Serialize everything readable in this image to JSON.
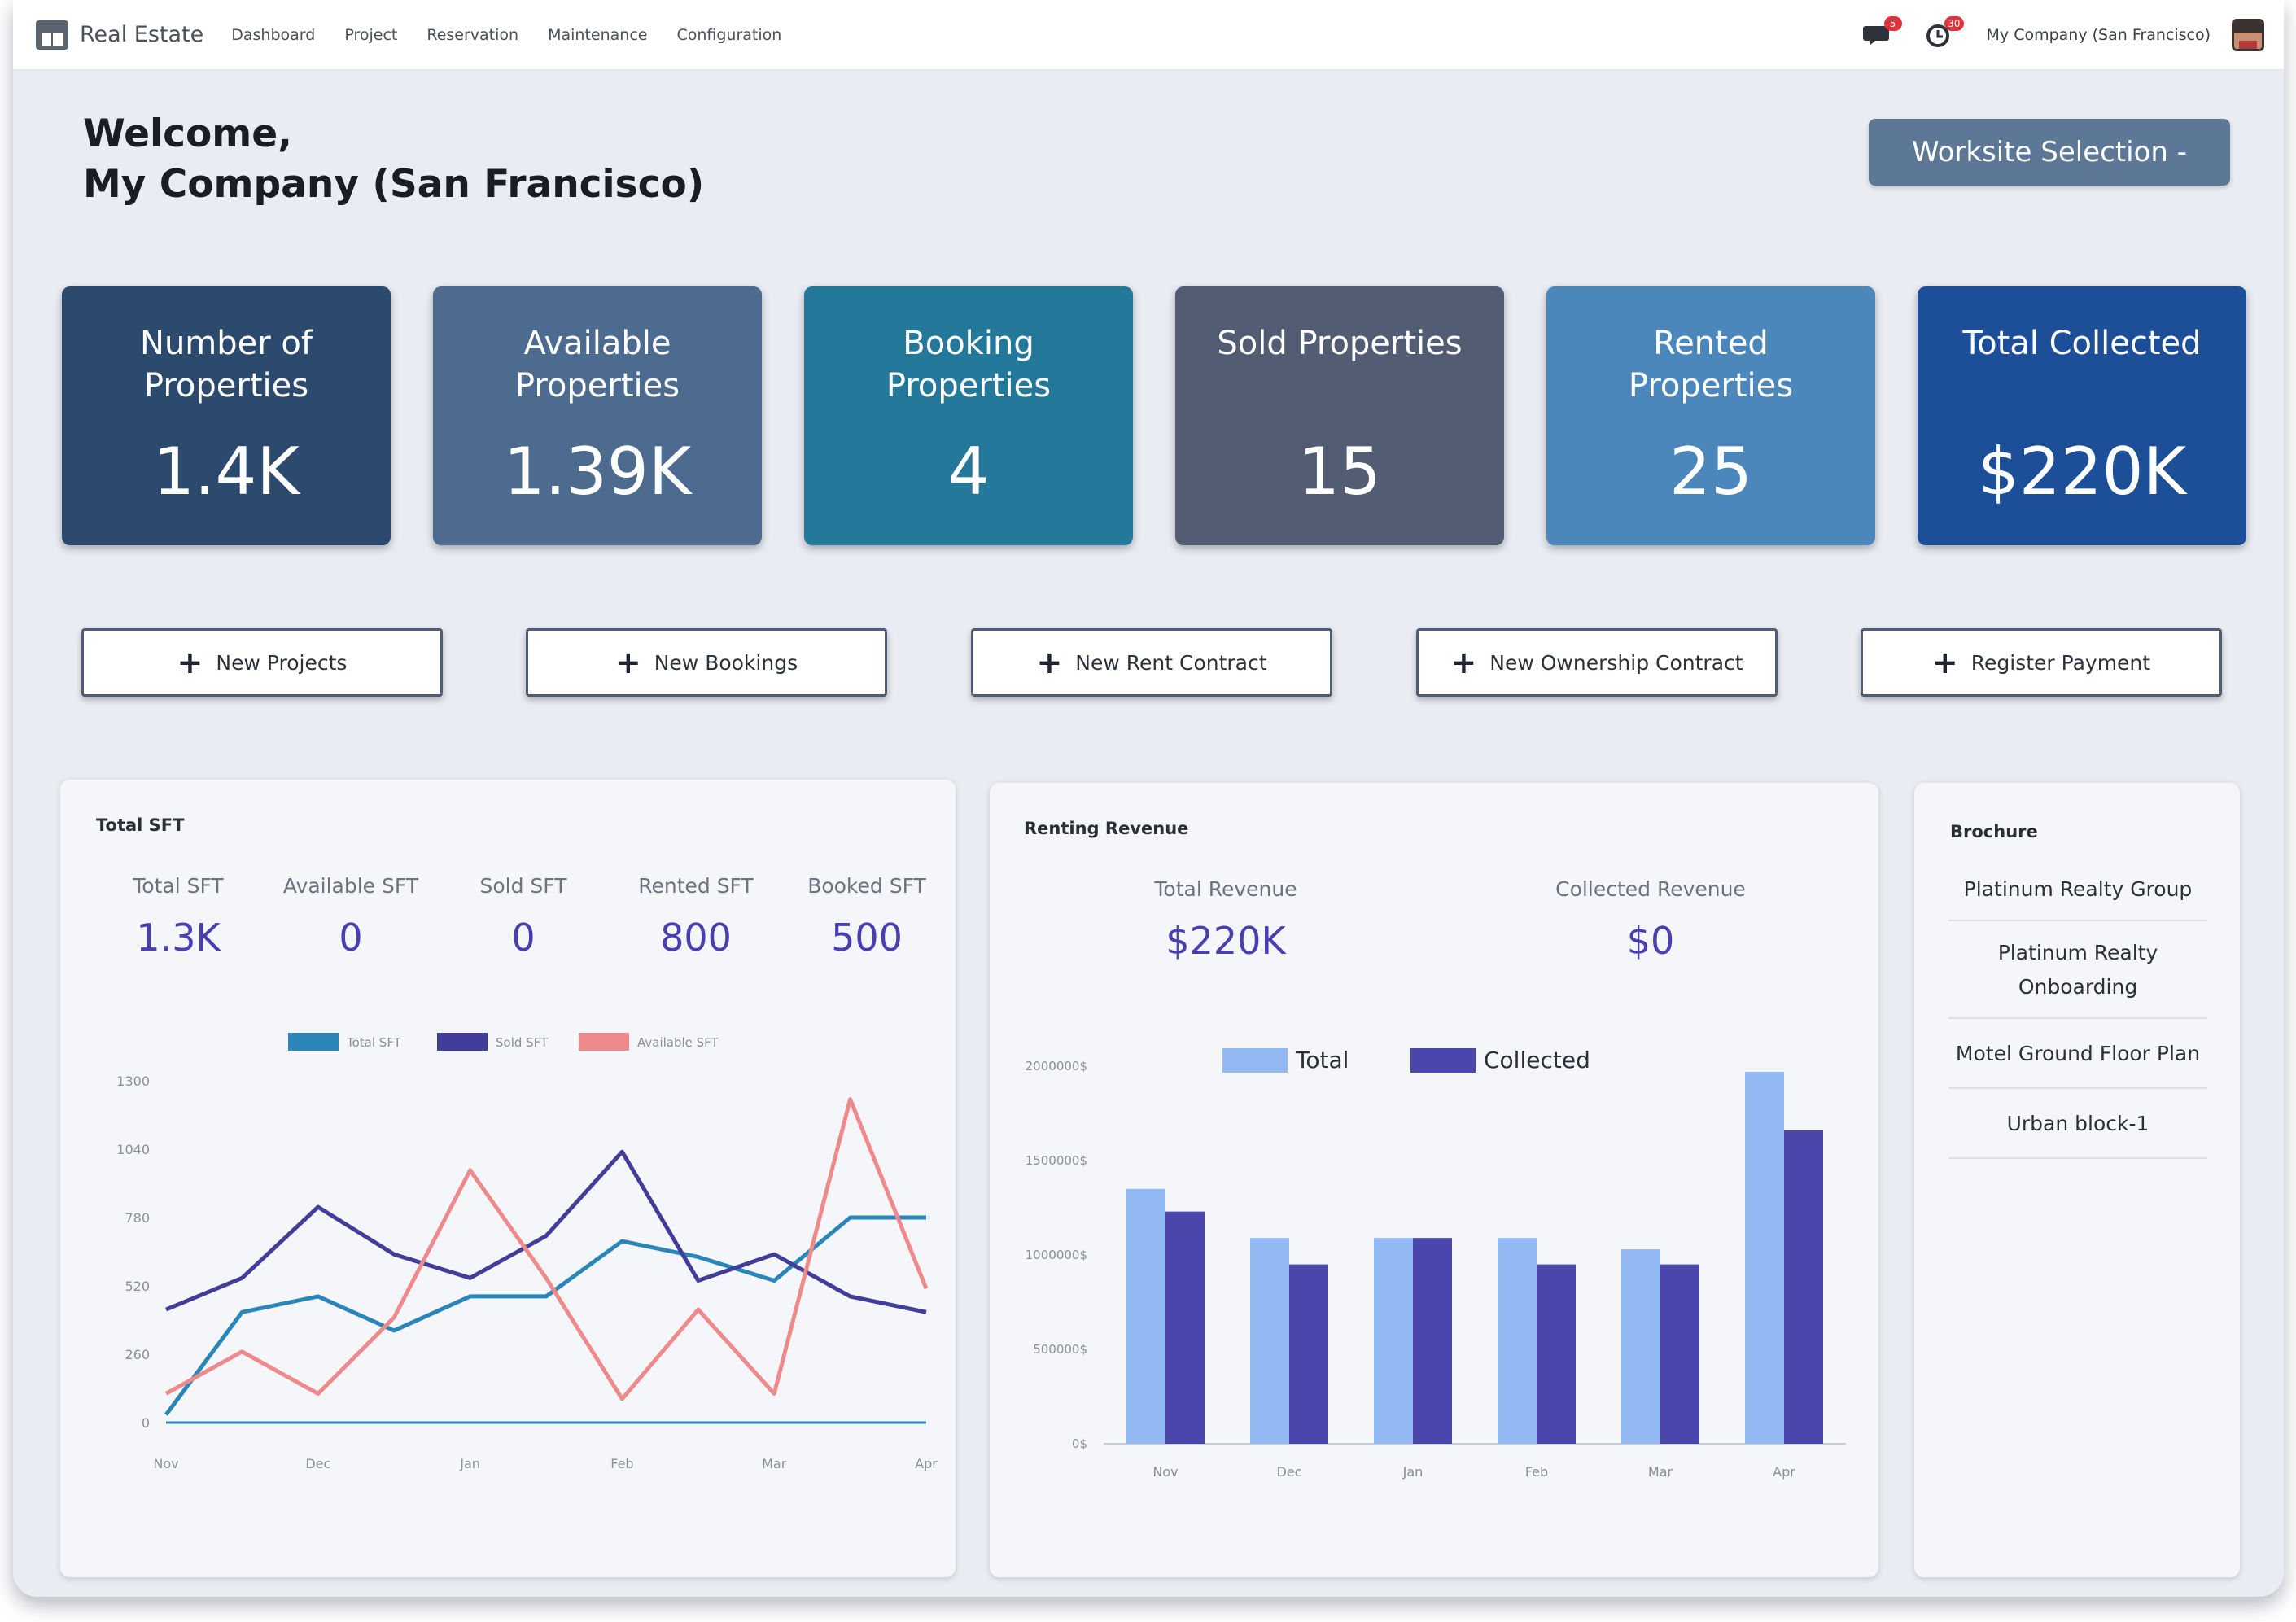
{
  "topbar": {
    "app_name": "Real Estate",
    "nav": [
      "Dashboard",
      "Project",
      "Reservation",
      "Maintenance",
      "Configuration"
    ],
    "messages_count": "5",
    "activity_count": "30",
    "company_switch": "My Company (San Francisco)",
    "icons": [
      "app-grid-icon",
      "messages-icon",
      "activity-clock-icon",
      "user-avatar"
    ]
  },
  "welcome": {
    "line1": "Welcome,",
    "line2": "My Company (San Francisco)"
  },
  "worksite_button": "Worksite Selection -",
  "stats": [
    {
      "label": "Number of Properties",
      "value": "1.4K",
      "color": "#2c4a6e"
    },
    {
      "label": "Available Properties",
      "value": "1.39K",
      "color": "#4c6b8e"
    },
    {
      "label": "Booking Properties",
      "value": "4",
      "color": "#24799b"
    },
    {
      "label": "Sold Properties",
      "value": "15",
      "color": "#525c72"
    },
    {
      "label": "Rented Properties",
      "value": "25",
      "color": "#4c87bc"
    },
    {
      "label": "Total Collected",
      "value": "$220K",
      "color": "#1d4f99"
    }
  ],
  "actions": [
    "New Projects",
    "New Bookings",
    "New Rent Contract",
    "New Ownership Contract",
    "Register Payment"
  ],
  "total_sft": {
    "title": "Total SFT",
    "metrics": [
      {
        "label": "Total SFT",
        "value": "1.3K"
      },
      {
        "label": "Available SFT",
        "value": "0"
      },
      {
        "label": "Sold SFT",
        "value": "0"
      },
      {
        "label": "Rented SFT",
        "value": "800"
      },
      {
        "label": "Booked SFT",
        "value": "500"
      }
    ]
  },
  "rent_revenue": {
    "title": "Renting Revenue",
    "metrics": [
      {
        "label": "Total Revenue",
        "value": "$220K"
      },
      {
        "label": "Collected Revenue",
        "value": "$0"
      }
    ]
  },
  "brochure": {
    "title": "Brochure",
    "items": [
      "Platinum Realty Group",
      "Platinum Realty Onboarding",
      "Motel Ground Floor Plan",
      "Urban block-1"
    ]
  },
  "chart_data": [
    {
      "type": "line",
      "title": "",
      "x": [
        "Nov",
        "",
        "Dec",
        "",
        "Jan",
        "",
        "Feb",
        "",
        "Mar",
        "",
        "Apr"
      ],
      "tick_labels": [
        "Nov",
        "Dec",
        "Jan",
        "Feb",
        "Mar",
        "Apr"
      ],
      "y_ticks": [
        "0",
        "260",
        "520",
        "780",
        "1040",
        "1300"
      ],
      "ylim": [
        0,
        1300
      ],
      "grid": false,
      "legend_position": "top-center",
      "series": [
        {
          "name": "Total SFT",
          "color": "#2a86b9",
          "values": [
            30,
            420,
            480,
            350,
            480,
            480,
            690,
            630,
            540,
            780,
            780
          ]
        },
        {
          "name": "Sold SFT",
          "color": "#423d99",
          "values": [
            430,
            550,
            820,
            640,
            550,
            710,
            1030,
            540,
            640,
            480,
            420
          ]
        },
        {
          "name": "Available SFT",
          "color": "#ee8a8c",
          "values": [
            110,
            270,
            110,
            400,
            960,
            550,
            90,
            430,
            110,
            1230,
            510
          ]
        },
        {
          "name": "",
          "color": "#2a86b9",
          "values": [
            0,
            0,
            0,
            0,
            0,
            0,
            0,
            0,
            0,
            0,
            0
          ]
        }
      ]
    },
    {
      "type": "bar",
      "title": "",
      "categories": [
        "Nov",
        "Dec",
        "Jan",
        "Feb",
        "Mar",
        "Apr"
      ],
      "y_ticks": [
        "0$",
        "500000$",
        "1000000$",
        "1500000$",
        "2000000$"
      ],
      "ylim": [
        0,
        2000000
      ],
      "grid": false,
      "legend_position": "top-center",
      "series": [
        {
          "name": "Total",
          "color": "#93b9f5",
          "values": [
            1350000,
            1090000,
            1090000,
            1090000,
            1030000,
            1970000
          ]
        },
        {
          "name": "Collected",
          "color": "#4a46ab",
          "values": [
            1230000,
            950000,
            1090000,
            950000,
            950000,
            1660000
          ]
        }
      ]
    }
  ]
}
